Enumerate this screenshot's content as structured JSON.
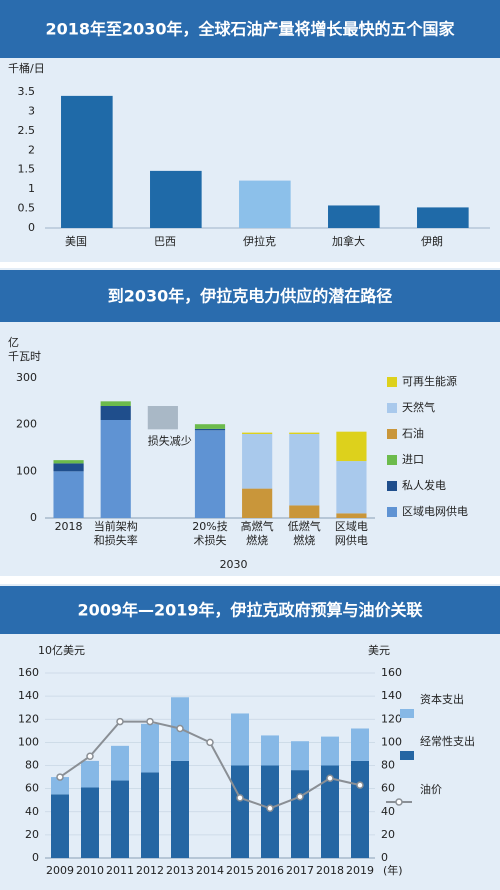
{
  "chart_data": [
    {
      "type": "bar",
      "title": "2018年至2030年，全球石油产量将增长最快的五个国家",
      "y_unit": "千桶/日",
      "categories": [
        "美国",
        "巴西",
        "伊拉克",
        "加拿大",
        "伊朗"
      ],
      "values": [
        3.4,
        1.47,
        1.22,
        0.58,
        0.53
      ],
      "colors": [
        "#1f6aa8",
        "#1f6aa8",
        "#8cc0ea",
        "#1f6aa8",
        "#1f6aa8"
      ],
      "ylim": [
        0,
        3.5
      ],
      "yticks": [
        0,
        0.5,
        1,
        1.5,
        2,
        2.5,
        3,
        3.5
      ],
      "grid": false
    },
    {
      "type": "stacked_bar",
      "title": "到2030年，伊拉克电力供应的潜在路径",
      "y_unit": "亿\n千瓦时",
      "categories": [
        "2018",
        "当前架构\n和损失率",
        null,
        "20%技\n术损失",
        "高燃气\n燃烧",
        "低燃气\n燃烧",
        "区域电\n网供电"
      ],
      "group_label": "2030",
      "series": [
        {
          "name": "区域电网供电",
          "color": "#5f93d3",
          "values": [
            100,
            210,
            null,
            188,
            null,
            null,
            null
          ]
        },
        {
          "name": "私人发电",
          "color": "#1f4e8c",
          "values": [
            17,
            30,
            null,
            3,
            null,
            null,
            null
          ]
        },
        {
          "name": "进口",
          "color": "#6cbb4c",
          "values": [
            7,
            10,
            null,
            10,
            null,
            null,
            null
          ]
        },
        {
          "name": "石油",
          "color": "#c9963a",
          "values": [
            null,
            null,
            null,
            null,
            63,
            27,
            10
          ]
        },
        {
          "name": "天然气",
          "color": "#a9c9ec",
          "values": [
            null,
            null,
            null,
            null,
            117,
            153,
            112
          ]
        },
        {
          "name": "可再生能源",
          "color": "#ddd11c",
          "values": [
            null,
            null,
            null,
            null,
            3,
            3,
            63
          ]
        }
      ],
      "floating_bar": {
        "label": "损失减少",
        "low": 190,
        "high": 240,
        "color": "#a9b8c6"
      },
      "ylim": [
        0,
        300
      ],
      "yticks": [
        0,
        100,
        200,
        300
      ],
      "grid": false
    },
    {
      "type": "bar_line",
      "title": "2009年—2019年，伊拉克政府预算与油价关联",
      "y_unit": "10亿美元",
      "y2_unit": "美元",
      "x_unit": "(年)",
      "categories": [
        "2009",
        "2010",
        "2011",
        "2012",
        "2013",
        "2014",
        "2015",
        "2016",
        "2017",
        "2018",
        "2019"
      ],
      "series": [
        {
          "name": "经常性支出",
          "type": "bar",
          "color": "#2566a3",
          "values": [
            55,
            61,
            67,
            74,
            84,
            null,
            80,
            80,
            76,
            80,
            84
          ]
        },
        {
          "name": "资本支出",
          "type": "bar",
          "color": "#86b8e6",
          "values": [
            15,
            23,
            30,
            42,
            55,
            null,
            45,
            26,
            25,
            25,
            28
          ]
        },
        {
          "name": "油价",
          "type": "line",
          "axis": "y2",
          "color": "#8a8f95",
          "values": [
            70,
            88,
            118,
            118,
            112,
            100,
            52,
            43,
            53,
            69,
            63
          ]
        }
      ],
      "ylim": [
        0,
        160
      ],
      "yticks": [
        0,
        20,
        40,
        60,
        80,
        100,
        120,
        140,
        160
      ],
      "y2lim": [
        0,
        160
      ],
      "y2ticks": [
        0,
        20,
        40,
        60,
        80,
        100,
        120,
        140,
        160
      ],
      "grid": true
    }
  ]
}
